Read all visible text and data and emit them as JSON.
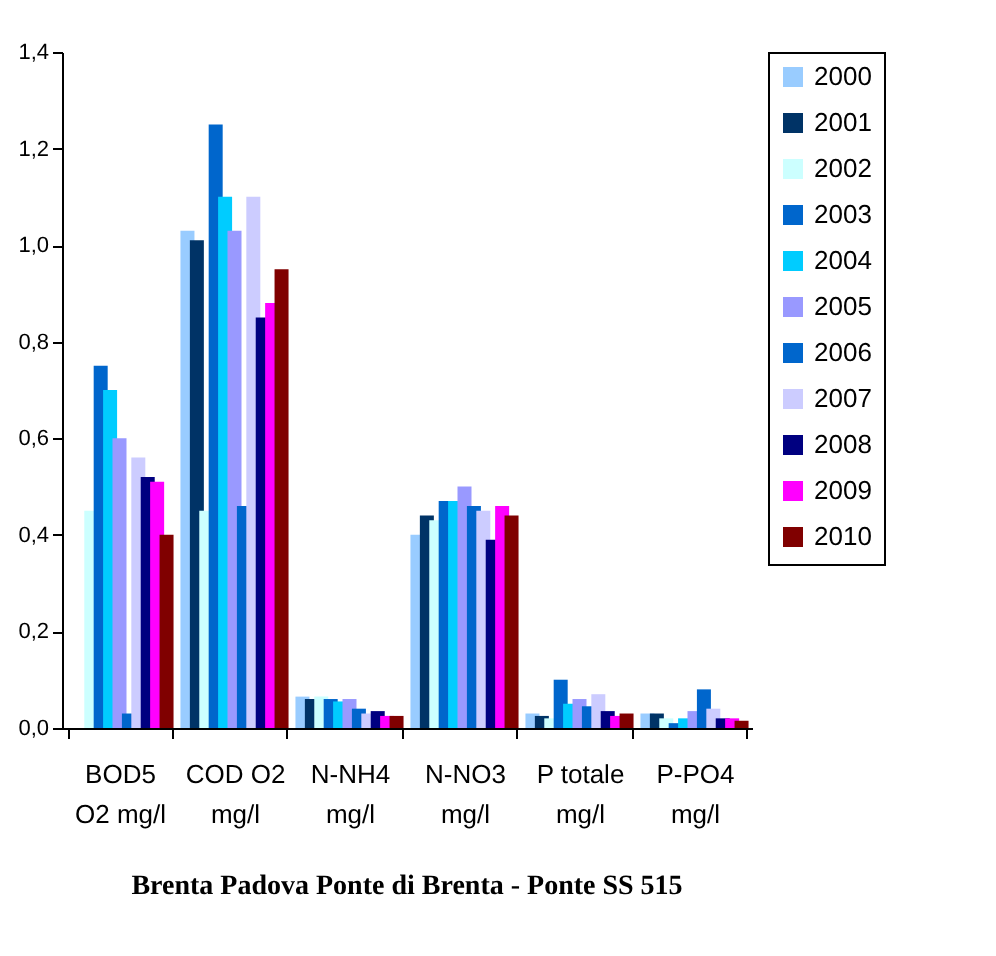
{
  "chart_data": {
    "type": "bar",
    "title": "Brenta Padova Ponte di Brenta - Ponte SS 515",
    "categories": [
      "BOD5\nO2 mg/l",
      "COD O2\nmg/l",
      "N-NH4\nmg/l",
      "N-NO3\nmg/l",
      "P totale\nmg/l",
      "P-PO4\nmg/l"
    ],
    "series": [
      {
        "name": "2000",
        "color": "#99ccff",
        "values": [
          null,
          1.03,
          0.065,
          0.4,
          0.03,
          0.03
        ]
      },
      {
        "name": "2001",
        "color": "#003366",
        "values": [
          null,
          1.01,
          0.06,
          0.44,
          0.025,
          0.03
        ]
      },
      {
        "name": "2002",
        "color": "#ccffff",
        "values": [
          0.45,
          0.45,
          0.065,
          0.43,
          0.02,
          0.02
        ]
      },
      {
        "name": "2003",
        "color": "#0066cc",
        "values": [
          0.75,
          1.25,
          0.06,
          0.47,
          0.1,
          0.01
        ]
      },
      {
        "name": "2004",
        "color": "#00ccff",
        "values": [
          0.7,
          1.1,
          0.055,
          0.47,
          0.05,
          0.02
        ]
      },
      {
        "name": "2005",
        "color": "#9999ff",
        "values": [
          0.6,
          1.03,
          0.06,
          0.5,
          0.06,
          0.035
        ]
      },
      {
        "name": "2006",
        "color": "#0066cc",
        "values": [
          0.03,
          0.46,
          0.04,
          0.46,
          0.045,
          0.08
        ]
      },
      {
        "name": "2007",
        "color": "#ccccff",
        "values": [
          0.56,
          1.1,
          0.03,
          0.45,
          0.07,
          0.04
        ]
      },
      {
        "name": "2008",
        "color": "#000080",
        "values": [
          0.52,
          0.85,
          0.035,
          0.39,
          0.035,
          0.02
        ]
      },
      {
        "name": "2009",
        "color": "#ff00ff",
        "values": [
          0.51,
          0.88,
          0.025,
          0.46,
          0.025,
          0.02
        ]
      },
      {
        "name": "2010",
        "color": "#800000",
        "values": [
          0.4,
          0.95,
          0.025,
          0.44,
          0.03,
          0.015
        ]
      }
    ],
    "ylim": [
      0,
      1.4
    ],
    "yticks": [
      {
        "value": 0,
        "label": "0,0"
      },
      {
        "value": 0.2,
        "label": "0,2"
      },
      {
        "value": 0.4,
        "label": "0,4"
      },
      {
        "value": 0.6,
        "label": "0,6"
      },
      {
        "value": 0.8,
        "label": "0,8"
      },
      {
        "value": 1.0,
        "label": "1,0"
      },
      {
        "value": 1.2,
        "label": "1,2"
      },
      {
        "value": 1.4,
        "label": "1,4"
      }
    ],
    "grid": false,
    "legend": "top right"
  }
}
